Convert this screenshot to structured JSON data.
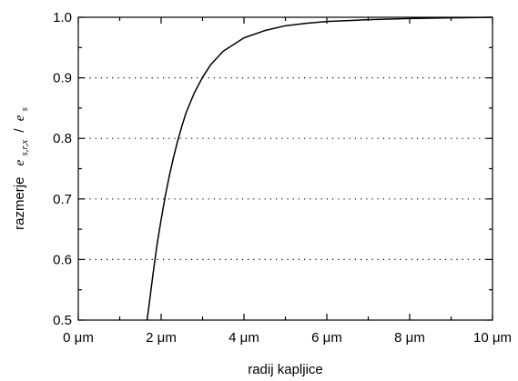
{
  "chart_data": {
    "type": "line",
    "title": "",
    "xlabel": "radij kapljice",
    "ylabel": {
      "prefix": "razmerje",
      "num_base": "e",
      "num_sub": "s,r,x",
      "slash": "/",
      "den_base": "e",
      "den_sub": "s"
    },
    "xlim": [
      0,
      10
    ],
    "ylim": [
      0.5,
      1.0
    ],
    "x_ticks": [
      0,
      2,
      4,
      6,
      8,
      10
    ],
    "x_tick_labels": [
      "0 μm",
      "2 μm",
      "4 μm",
      "6 μm",
      "8 μm",
      "10 μm"
    ],
    "y_ticks": [
      0.5,
      0.6,
      0.7,
      0.8,
      0.9,
      1.0
    ],
    "y_tick_labels": [
      "0.5",
      "0.6",
      "0.7",
      "0.8",
      "0.9",
      "1.0"
    ],
    "grid": "horizontal dotted",
    "legend": "none",
    "line_color": "#000000",
    "series": [
      {
        "x": [
          1.66,
          1.7,
          1.8,
          1.9,
          2.0,
          2.1,
          2.2,
          2.3,
          2.4,
          2.5,
          2.6,
          2.8,
          3.0,
          3.2,
          3.5,
          4.0,
          4.5,
          5.0,
          5.5,
          6.0,
          7.0,
          8.0,
          9.0,
          10.0
        ],
        "values": [
          0.5,
          0.52,
          0.574,
          0.624,
          0.666,
          0.705,
          0.739,
          0.769,
          0.796,
          0.82,
          0.842,
          0.875,
          0.901,
          0.922,
          0.944,
          0.966,
          0.978,
          0.986,
          0.99,
          0.993,
          0.996,
          0.998,
          0.999,
          1.0
        ]
      }
    ]
  }
}
